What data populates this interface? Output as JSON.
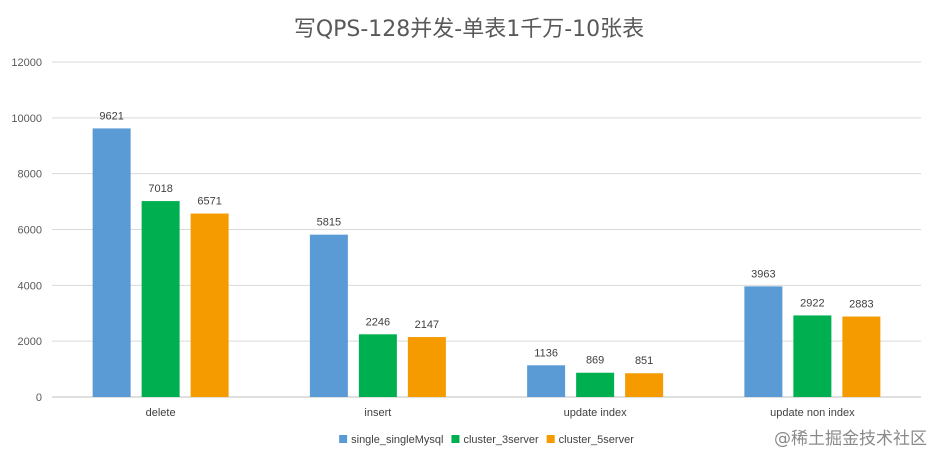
{
  "chart_data": {
    "type": "bar",
    "title": "写QPS-128并发-单表1千万-10张表",
    "categories": [
      "delete",
      "insert",
      "update index",
      "update non index"
    ],
    "series": [
      {
        "name": "single_singleMysql",
        "values": [
          9621,
          5815,
          1136,
          3963
        ],
        "color": "#5b9bd5"
      },
      {
        "name": "cluster_3server",
        "values": [
          7018,
          2246,
          869,
          2922
        ],
        "color": "#00b050"
      },
      {
        "name": "cluster_5server",
        "values": [
          6571,
          2147,
          851,
          2883
        ],
        "color": "#f59b00"
      }
    ],
    "ylim": [
      0,
      12000
    ],
    "yticks": [
      0,
      2000,
      4000,
      6000,
      8000,
      10000,
      12000
    ],
    "grid": true,
    "legend": "bottom",
    "data_labels": true
  },
  "watermark": "@稀土掘金技术社区"
}
